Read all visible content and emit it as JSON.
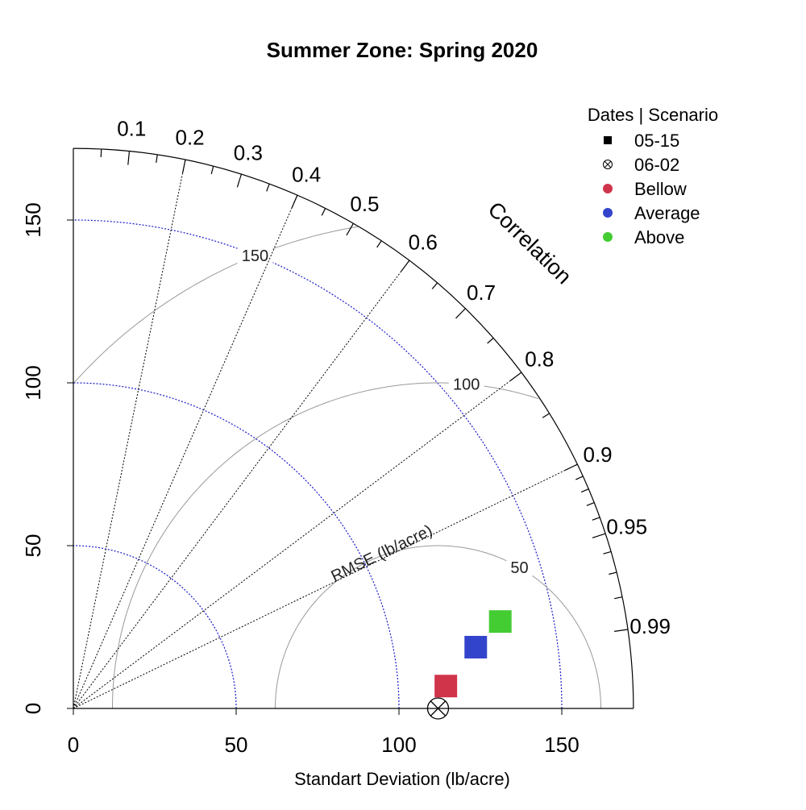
{
  "chart_data": {
    "type": "scatter",
    "subtype": "taylor-diagram",
    "title": "Summer Zone: Spring 2020",
    "xlabel": "Standart Deviation (lb/acre)",
    "sd_max": 172,
    "sd_ticks": [
      0,
      50,
      100,
      150
    ],
    "sd_circles": [
      50,
      100,
      150
    ],
    "correlation_label": "Correlation",
    "correlation_major": [
      0.1,
      0.2,
      0.3,
      0.4,
      0.5,
      0.6,
      0.7,
      0.8,
      0.9,
      0.95,
      0.99
    ],
    "correlation_minor": [
      0.05,
      0.15,
      0.25,
      0.35,
      0.45,
      0.55,
      0.65,
      0.75,
      0.85,
      0.91,
      0.92,
      0.93,
      0.94,
      0.96,
      0.97,
      0.98
    ],
    "reference": {
      "sd": 112
    },
    "rmse_label": "RMSE (lb/acre)",
    "rmse_levels": [
      50,
      100,
      150
    ],
    "rmse_level_labels": [
      "50",
      "100",
      "150"
    ],
    "legend": {
      "title": "Dates | Scenario",
      "position": "top-right",
      "items": [
        {
          "label": "05-15",
          "marker": "square",
          "color": "#000000"
        },
        {
          "label": "06-02",
          "marker": "circle-x",
          "color": "#000000"
        },
        {
          "label": "Bellow",
          "marker": "dot",
          "color": "#D0344A"
        },
        {
          "label": "Average",
          "marker": "dot",
          "color": "#3344CC"
        },
        {
          "label": "Above",
          "marker": "dot",
          "color": "#44CC33"
        }
      ]
    },
    "points": [
      {
        "scenario": "Bellow",
        "date": "05-15",
        "sd": 114.6,
        "correlation": 0.9982,
        "color": "#D0344A"
      },
      {
        "scenario": "Average",
        "date": "05-15",
        "sd": 125.0,
        "correlation": 0.9886,
        "color": "#3344CC"
      },
      {
        "scenario": "Above",
        "date": "05-15",
        "sd": 133.8,
        "correlation": 0.9799,
        "color": "#44CC33"
      },
      {
        "scenario": "Reference",
        "date": "06-02",
        "sd": 112,
        "correlation": 1.0,
        "color": "#000000"
      }
    ]
  }
}
